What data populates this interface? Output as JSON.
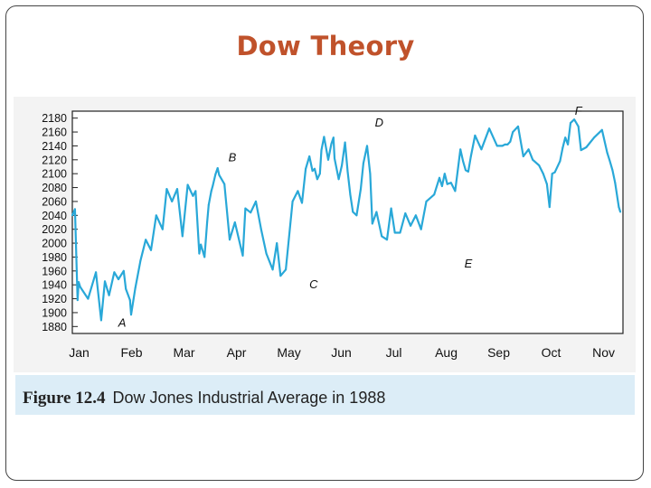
{
  "slide": {
    "title": "Dow Theory"
  },
  "caption": {
    "figure_number": "Figure 12.4",
    "text": "Dow Jones Industrial Average in 1988"
  },
  "colors": {
    "title": "#c0522b",
    "line": "#29a8d8",
    "caption_bg": "#dcedf7"
  },
  "chart_data": {
    "type": "line",
    "title": "",
    "xlabel": "",
    "ylabel": "",
    "ylim": [
      1870,
      2190
    ],
    "yticks": [
      1880,
      1900,
      1920,
      1940,
      1960,
      1980,
      2000,
      2020,
      2040,
      2060,
      2080,
      2100,
      2120,
      2140,
      2160,
      2180
    ],
    "x_range": [
      0,
      10.5
    ],
    "x_ticks": [
      {
        "label": "Jan",
        "x": 0.13
      },
      {
        "label": "Feb",
        "x": 1.13
      },
      {
        "label": "Mar",
        "x": 2.13
      },
      {
        "label": "Apr",
        "x": 3.13
      },
      {
        "label": "May",
        "x": 4.13
      },
      {
        "label": "Jun",
        "x": 5.13
      },
      {
        "label": "Jul",
        "x": 6.13
      },
      {
        "label": "Aug",
        "x": 7.13
      },
      {
        "label": "Sep",
        "x": 8.13
      },
      {
        "label": "Oct",
        "x": 9.13
      },
      {
        "label": "Nov",
        "x": 10.13
      }
    ],
    "grid": false,
    "series": [
      {
        "x": [
          0,
          0.05,
          0.1,
          0.12,
          0.15,
          0.3,
          0.45,
          0.55,
          0.62,
          0.7,
          0.8,
          0.88,
          0.98,
          1.02,
          1.1,
          1.12,
          1.2,
          1.3,
          1.4,
          1.5,
          1.6,
          1.72,
          1.8,
          1.9,
          2.0,
          2.1,
          2.2,
          2.3,
          2.35,
          2.42,
          2.45,
          2.52,
          2.57,
          2.6,
          2.65,
          2.68,
          2.73,
          2.77,
          2.8,
          2.9,
          3.0,
          3.1,
          3.2,
          3.25,
          3.3,
          3.4,
          3.5,
          3.6,
          3.7,
          3.82,
          3.9,
          3.97,
          4.07,
          4.2,
          4.3,
          4.38,
          4.45,
          4.52,
          4.58,
          4.62,
          4.67,
          4.72,
          4.75,
          4.8,
          4.88,
          4.94,
          4.98,
          5.0,
          5.08,
          5.14,
          5.2,
          5.25,
          5.3,
          5.35,
          5.42,
          5.5,
          5.55,
          5.62,
          5.68,
          5.72,
          5.8,
          5.9,
          6.0,
          6.08,
          6.15,
          6.25,
          6.35,
          6.45,
          6.55,
          6.65,
          6.75,
          6.9,
          7.0,
          7.05,
          7.1,
          7.15,
          7.22,
          7.3,
          7.4,
          7.45,
          7.5,
          7.55,
          7.6,
          7.68,
          7.8,
          7.95,
          8.1,
          8.2,
          8.25,
          8.3,
          8.35,
          8.4,
          8.5,
          8.6,
          8.7,
          8.78,
          8.9,
          8.98,
          9.05,
          9.1,
          9.15,
          9.2,
          9.3,
          9.35,
          9.4,
          9.45,
          9.5,
          9.57,
          9.65,
          9.7,
          9.8,
          9.95,
          10.1,
          10.2,
          10.25,
          10.3,
          10.35,
          10.42,
          10.45
        ],
        "y": [
          2040,
          2049,
          1918,
          1944,
          1937,
          1920,
          1958,
          1889,
          1945,
          1925,
          1958,
          1948,
          1960,
          1934,
          1918,
          1897,
          1935,
          1975,
          2005,
          1990,
          2040,
          2020,
          2078,
          2060,
          2078,
          2010,
          2084,
          2068,
          2075,
          1985,
          1998,
          1980,
          2030,
          2055,
          2075,
          2083,
          2099,
          2108,
          2098,
          2085,
          2005,
          2030,
          1998,
          1982,
          2050,
          2044,
          2060,
          2020,
          1985,
          1962,
          2000,
          1953,
          1962,
          2060,
          2075,
          2058,
          2107,
          2125,
          2104,
          2107,
          2092,
          2100,
          2134,
          2153,
          2120,
          2143,
          2152,
          2122,
          2092,
          2112,
          2145,
          2103,
          2070,
          2045,
          2040,
          2078,
          2115,
          2140,
          2100,
          2028,
          2045,
          2010,
          2005,
          2050,
          2015,
          2015,
          2043,
          2025,
          2040,
          2020,
          2060,
          2070,
          2094,
          2082,
          2100,
          2085,
          2087,
          2075,
          2135,
          2118,
          2105,
          2103,
          2125,
          2155,
          2135,
          2165,
          2140,
          2140,
          2142,
          2142,
          2146,
          2160,
          2168,
          2125,
          2135,
          2120,
          2112,
          2100,
          2085,
          2052,
          2100,
          2102,
          2118,
          2137,
          2152,
          2142,
          2173,
          2178,
          2168,
          2134,
          2138,
          2152,
          2163,
          2130,
          2118,
          2105,
          2087,
          2052,
          2045
        ]
      }
    ],
    "annotations": [
      {
        "text": "A",
        "x": 0.95,
        "y": 1880
      },
      {
        "text": "B",
        "x": 3.05,
        "y": 2118
      },
      {
        "text": "C",
        "x": 4.6,
        "y": 1935
      },
      {
        "text": "D",
        "x": 5.85,
        "y": 2168
      },
      {
        "text": "E",
        "x": 7.55,
        "y": 1965
      },
      {
        "text": "F",
        "x": 9.65,
        "y": 2185
      }
    ]
  }
}
